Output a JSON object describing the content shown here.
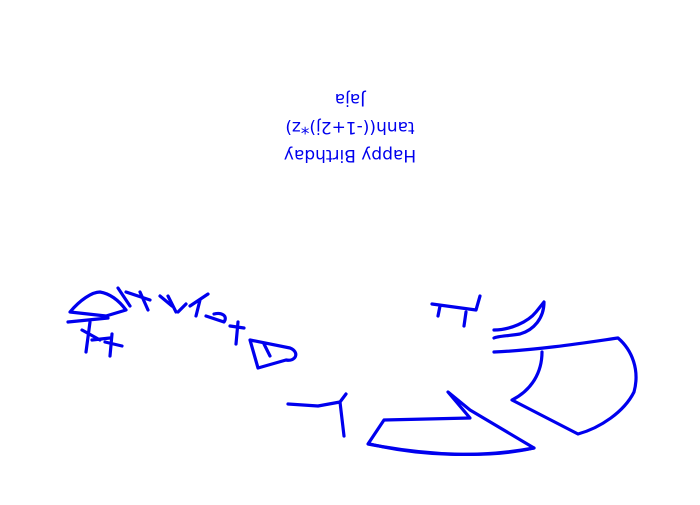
{
  "caption": {
    "line1": "Happy Birthday",
    "line2": "tanh((-1+2j)*z)",
    "line3": "Jaja"
  },
  "colors": {
    "ink": "#0000ee",
    "background": "#ffffff"
  }
}
